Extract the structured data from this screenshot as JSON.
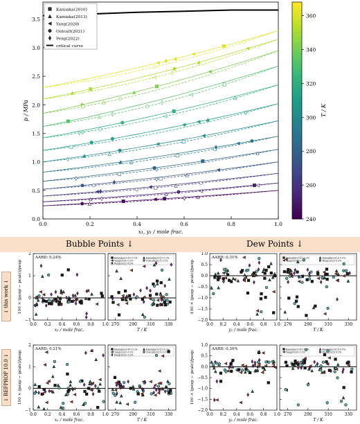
{
  "chart_data": [
    {
      "type": "scatter",
      "id": "main",
      "ylabel": "p / MPa",
      "xlabel": "x₁, y₁ / mole frac.",
      "xlim": [
        0,
        1
      ],
      "ylim": [
        0,
        3.8
      ],
      "xticks": [
        "0.0",
        "0.2",
        "0.4",
        "0.6",
        "0.8",
        "1.0"
      ],
      "yticks": [
        "0.0",
        "0.5",
        "1.0",
        "1.5",
        "2.0",
        "2.5",
        "3.0",
        "3.5"
      ],
      "colorbar": {
        "label": "T / K",
        "min": 240,
        "max": 368,
        "ticks": [
          "240",
          "260",
          "280",
          "300",
          "320",
          "340",
          "360"
        ],
        "colormap": "viridis"
      },
      "legend_position": "upper-left",
      "legend": [
        {
          "name": "Kamiaka(2010)",
          "marker": "square"
        },
        {
          "name": "Kamiaka(2013)",
          "marker": "triangle-up"
        },
        {
          "name": "Yang(2020)",
          "marker": "triangle-left"
        },
        {
          "name": "Outcalt(2021)",
          "marker": "circle"
        },
        {
          "name": "Peng(2022)",
          "marker": "diamond"
        },
        {
          "name": "critical curve",
          "marker": "line"
        }
      ],
      "critical_curve": {
        "x": [
          0,
          0.2,
          0.4,
          0.6,
          0.8,
          1.0
        ],
        "y": [
          3.56,
          3.59,
          3.62,
          3.64,
          3.66,
          3.66
        ]
      },
      "isotherms": [
        {
          "T": 243,
          "p0": 0.23,
          "p1": 0.5
        },
        {
          "T": 253,
          "p0": 0.3,
          "p1": 0.63
        },
        {
          "T": 263,
          "p0": 0.4,
          "p1": 0.8
        },
        {
          "T": 273,
          "p0": 0.52,
          "p1": 1.0
        },
        {
          "T": 283,
          "p0": 0.66,
          "p1": 1.22
        },
        {
          "T": 293,
          "p0": 0.82,
          "p1": 1.45
        },
        {
          "T": 303,
          "p0": 1.0,
          "p1": 1.72
        },
        {
          "T": 313,
          "p0": 1.2,
          "p1": 2.02
        },
        {
          "T": 323,
          "p0": 1.42,
          "p1": 2.35
        },
        {
          "T": 333,
          "p0": 1.62,
          "p1": 2.68
        },
        {
          "T": 343,
          "p0": 1.85,
          "p1": 2.95
        },
        {
          "T": 353,
          "p0": 2.1,
          "p1": 3.15
        },
        {
          "T": 363,
          "p0": 2.3,
          "p1": 3.3
        }
      ]
    },
    {
      "type": "scatter",
      "id": "bubble-x-thiswork",
      "annotation": "AARD: 0.24%",
      "ylabel": "100 × (pexp − pcalc)/pexp",
      "xlabel": "x₁ / mole frac.",
      "xlim": [
        0,
        1
      ],
      "ylim": [
        -1,
        2
      ],
      "xticks": [
        "0.0",
        "0.2",
        "0.4",
        "0.6",
        "0.8",
        "1.0"
      ],
      "yticks": [
        "−1",
        "0",
        "1",
        "2"
      ]
    },
    {
      "type": "scatter",
      "id": "bubble-T-thiswork",
      "xlabel": "T / K",
      "xlim": [
        262,
        338
      ],
      "ylim": [
        -1,
        2
      ],
      "xticks": [
        "270",
        "290",
        "310",
        "330"
      ],
      "legend_position": "top",
      "legend": [
        "Kamiaka(2010) 0.2%",
        "Kamiaka(2013) 0.2%",
        "Yang(2020) 0.2%",
        "Outcalt(2021) 0.1%",
        "Peng(2022) 0.3%"
      ]
    },
    {
      "type": "scatter",
      "id": "dew-y-thiswork",
      "annotation": "AARD: 0.31%",
      "ylabel": "100 × (pexp − pcalc)/pexp",
      "xlabel": "y₁ / mole frac.",
      "xlim": [
        0,
        1
      ],
      "ylim": [
        -2,
        1
      ],
      "xticks": [
        "0.0",
        "0.2",
        "0.4",
        "0.6",
        "0.8",
        "1.0"
      ],
      "yticks": [
        "−2.0",
        "−1.5",
        "−1.0",
        "−0.5",
        "0.0",
        "0.5",
        "1.0"
      ]
    },
    {
      "type": "scatter",
      "id": "dew-T-thiswork",
      "xlabel": "T / K",
      "xlim": [
        262,
        338
      ],
      "ylim": [
        -2,
        1
      ],
      "xticks": [
        "270",
        "290",
        "310",
        "330"
      ],
      "legend_position": "top",
      "legend": [
        "Kamiaka(2010) 0.2%",
        "Kamiaka(2013) 0.5%",
        "Yang(2020) 0.3%",
        "Peng(2022) 0.3%"
      ]
    },
    {
      "type": "scatter",
      "id": "bubble-x-refprop",
      "annotation": "AARD: 0.21%",
      "ylabel": "100 × (pexp − pcalc)/pexp",
      "xlabel": "x₁ / mole frac.",
      "xlim": [
        0,
        1
      ],
      "ylim": [
        -1,
        2
      ],
      "xticks": [
        "0.0",
        "0.2",
        "0.4",
        "0.6",
        "0.8",
        "1.0"
      ],
      "yticks": [
        "−1",
        "0",
        "1",
        "2"
      ]
    },
    {
      "type": "scatter",
      "id": "bubble-T-refprop",
      "xlabel": "T / K",
      "xlim": [
        262,
        338
      ],
      "ylim": [
        -1,
        2
      ],
      "xticks": [
        "270",
        "290",
        "310",
        "330"
      ],
      "legend_position": "top",
      "legend": [
        "Kamiaka(2010) 0.2%",
        "Kamiaka(2013) 0.2%",
        "Yang(2020) 0.2%",
        "Outcalt(2021) 0.1%",
        "Peng(2022) 0.2%"
      ]
    },
    {
      "type": "scatter",
      "id": "dew-y-refprop",
      "annotation": "AARD: 0.30%",
      "ylabel": "100 × (pexp − pcalc)/pexp",
      "xlabel": "y₁ / mole frac.",
      "xlim": [
        0,
        1
      ],
      "ylim": [
        -2,
        1
      ],
      "xticks": [
        "0.0",
        "0.2",
        "0.4",
        "0.6",
        "0.8",
        "1.0"
      ],
      "yticks": [
        "−2.0",
        "−1.5",
        "−1.0",
        "−0.5",
        "0.0",
        "0.5",
        "1.0"
      ]
    },
    {
      "type": "scatter",
      "id": "dew-T-refprop",
      "xlabel": "T / K",
      "xlim": [
        262,
        338
      ],
      "ylim": [
        -2,
        1
      ],
      "xticks": [
        "270",
        "290",
        "310",
        "330"
      ],
      "legend_position": "top",
      "legend": [
        "Kamiaka(2010) 0.2%",
        "Kamiaka(2013) 0.5%",
        "Yang(2020) 0.2%",
        "Peng(2022) 0.3%"
      ]
    }
  ],
  "sections": {
    "bubble_title": "Bubble Points ↓",
    "dew_title": "Dew Points ↓",
    "row1_tag": "↓ this work ↓",
    "row2_tag": "↓ REFPROP 10.0 ↓"
  },
  "colors": {
    "banner": "#f9dfc7",
    "series": [
      "#1a1a1a",
      "#1f6b3a",
      "#c0392b",
      "#5ab4b0",
      "#8e2a9a"
    ],
    "critical": "#000000"
  }
}
